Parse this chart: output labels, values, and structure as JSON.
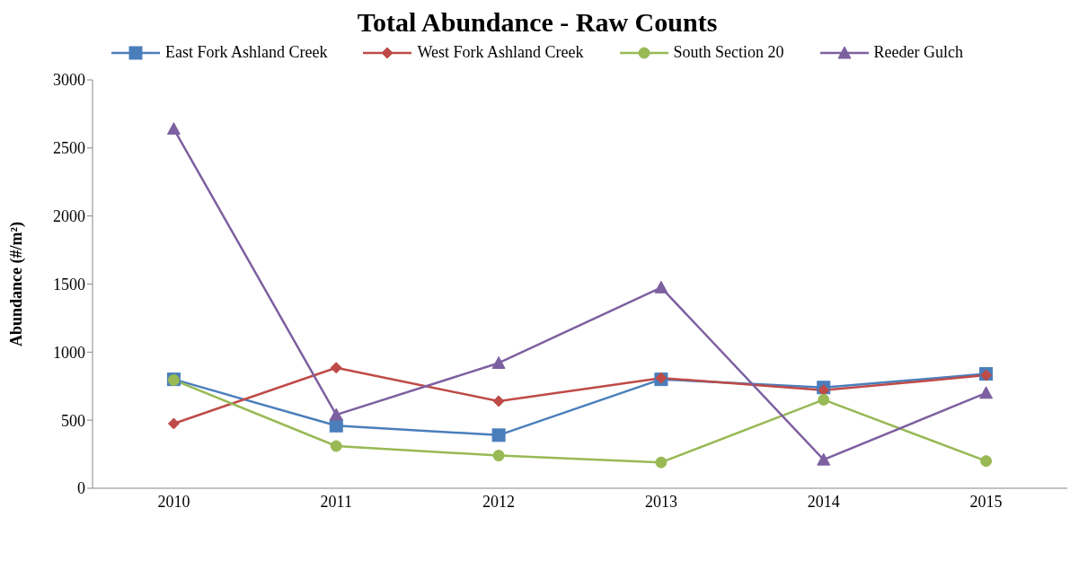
{
  "chart_data": {
    "type": "line",
    "title": "Total Abundance - Raw Counts",
    "ylabel": "Abundance (#/m²)",
    "categories": [
      "2010",
      "2011",
      "2012",
      "2013",
      "2014",
      "2015"
    ],
    "series": [
      {
        "name": "East Fork Ashland Creek",
        "color": "#4a7ebb",
        "marker": "square",
        "values": [
          800,
          460,
          390,
          800,
          740,
          840
        ]
      },
      {
        "name": "West Fork Ashland Creek",
        "color": "#be4b48",
        "marker": "diamond",
        "values": [
          475,
          885,
          640,
          810,
          720,
          830
        ]
      },
      {
        "name": "South Section 20",
        "color": "#98b954",
        "marker": "circle",
        "values": [
          795,
          310,
          240,
          190,
          650,
          200
        ]
      },
      {
        "name": "Reeder Gulch",
        "color": "#7d60a0",
        "marker": "triangle",
        "values": [
          2640,
          540,
          920,
          1475,
          210,
          700
        ]
      }
    ],
    "ylim": [
      0,
      3000
    ],
    "yticks": [
      0,
      500,
      1000,
      1500,
      2000,
      2500,
      3000
    ],
    "grid": false,
    "legend": "top",
    "line_style": "solid"
  }
}
